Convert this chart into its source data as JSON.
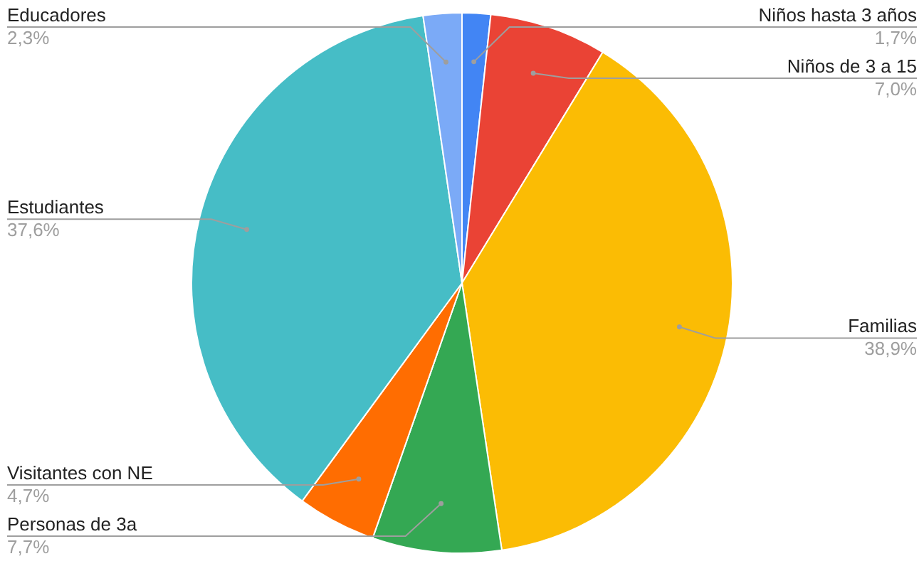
{
  "chart_data": {
    "type": "pie",
    "categories": [
      "Niños hasta 3 años",
      "Niños de 3 a 15",
      "Familias",
      "Personas de 3a",
      "Visitantes con NE",
      "Estudiantes",
      "Educadores"
    ],
    "values": [
      1.7,
      7.0,
      38.9,
      7.7,
      4.7,
      37.6,
      2.3
    ],
    "value_labels": [
      "1,7%",
      "7,0%",
      "38,9%",
      "7,7%",
      "4,7%",
      "37,6%",
      "2,3%"
    ],
    "colors": [
      "#4285f4",
      "#ea4335",
      "#fbbc04",
      "#34a853",
      "#ff6d01",
      "#46bdc6",
      "#7baaf7"
    ]
  }
}
